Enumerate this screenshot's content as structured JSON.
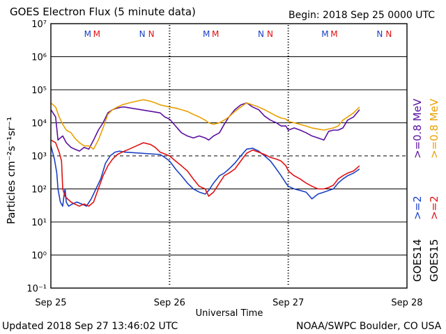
{
  "chart_data": {
    "type": "line",
    "title": "GOES Electron Flux (5 minute data)",
    "begin_label": "Begin: 2018 Sep 25 0000 UTC",
    "xlabel": "Universal Time",
    "ylabel": "Particles cm⁻²s⁻¹sr⁻¹",
    "y_scale": "log",
    "ylim": [
      0.1,
      10000000
    ],
    "y_ticks": [
      "10⁻¹",
      "10⁰",
      "10¹",
      "10²",
      "10³",
      "10⁴",
      "10⁵",
      "10⁶",
      "10⁷"
    ],
    "x_range_days": [
      0,
      3
    ],
    "x_ticks": [
      "Sep 25",
      "Sep 26",
      "Sep 27",
      "Sep 28"
    ],
    "grid": true,
    "threshold_line": 1000,
    "marker_labels": [
      "M",
      "M",
      "N",
      "N",
      "M",
      "M",
      "N",
      "N",
      "M",
      "M",
      "N",
      "N"
    ],
    "legend": {
      "goes14": "GOES14",
      "goes15": "GOES15",
      "ge2": ">=2",
      "ge08_mev": ">=0.8 MeV",
      "ge2_alt": ">=2",
      "ge08_mev_alt": ">=0.8 MeV",
      "placement": "right"
    },
    "series": [
      {
        "name": "GOES14 >=0.8 MeV",
        "color": "#5a0fa0",
        "x": [
          0,
          0.04,
          0.06,
          0.08,
          0.1,
          0.13,
          0.17,
          0.2,
          0.24,
          0.28,
          0.32,
          0.36,
          0.4,
          0.44,
          0.48,
          0.52,
          0.56,
          0.6,
          0.62,
          0.92,
          0.96,
          1.0,
          1.05,
          1.1,
          1.15,
          1.2,
          1.25,
          1.3,
          1.33,
          1.37,
          1.42,
          1.46,
          1.5,
          1.55,
          1.6,
          1.65,
          1.7,
          1.75,
          1.8,
          1.85,
          1.9,
          1.94,
          1.98,
          2.0,
          2.05,
          2.1,
          2.15,
          2.2,
          2.25,
          2.3,
          2.34,
          2.38,
          2.42,
          2.46,
          2.5,
          2.55,
          2.6
        ],
        "y": [
          25000,
          15000,
          3000,
          3500,
          4000,
          2500,
          1800,
          1600,
          1400,
          1800,
          1600,
          3000,
          6000,
          10000,
          20000,
          25000,
          28000,
          30000,
          30000,
          20000,
          15000,
          13000,
          8000,
          5000,
          4000,
          3500,
          4000,
          3500,
          3000,
          4000,
          5000,
          9000,
          15000,
          25000,
          35000,
          40000,
          30000,
          25000,
          16000,
          12000,
          10000,
          8000,
          8000,
          6000,
          7000,
          6000,
          5000,
          4000,
          3500,
          3000,
          5500,
          6000,
          6000,
          7000,
          12000,
          15000,
          25000
        ]
      },
      {
        "name": "GOES15 >=0.8 MeV",
        "color": "#e8a000",
        "x": [
          0,
          0.04,
          0.07,
          0.1,
          0.13,
          0.17,
          0.2,
          0.24,
          0.28,
          0.32,
          0.36,
          0.4,
          0.44,
          0.48,
          0.52,
          0.56,
          0.6,
          0.66,
          0.72,
          0.78,
          0.84,
          0.88,
          0.92,
          1.0,
          1.05,
          1.1,
          1.15,
          1.2,
          1.25,
          1.3,
          1.33,
          1.37,
          1.42,
          1.46,
          1.5,
          1.55,
          1.6,
          1.65,
          1.7,
          1.75,
          1.8,
          1.85,
          1.9,
          1.94,
          1.98,
          2.0,
          2.05,
          2.1,
          2.15,
          2.2,
          2.25,
          2.3,
          2.34,
          2.38,
          2.42,
          2.46,
          2.5,
          2.55,
          2.6
        ],
        "y": [
          40000,
          30000,
          15000,
          9000,
          6000,
          5000,
          3500,
          2500,
          2000,
          2000,
          1600,
          3000,
          7000,
          18000,
          25000,
          30000,
          35000,
          40000,
          45000,
          50000,
          45000,
          40000,
          35000,
          30000,
          28000,
          25000,
          22000,
          18000,
          15000,
          12000,
          10000,
          9000,
          10000,
          12000,
          15000,
          22000,
          30000,
          40000,
          35000,
          30000,
          25000,
          20000,
          16000,
          14000,
          13000,
          11000,
          10000,
          9000,
          8000,
          7000,
          6500,
          6000,
          6500,
          7000,
          8000,
          12000,
          15000,
          20000,
          30000
        ]
      },
      {
        "name": "GOES14 >=2",
        "color": "#1a3fc4",
        "x": [
          0,
          0.03,
          0.05,
          0.06,
          0.08,
          0.1,
          0.11,
          0.12,
          0.13,
          0.15,
          0.18,
          0.22,
          0.26,
          0.3,
          0.34,
          0.38,
          0.42,
          0.46,
          0.5,
          0.54,
          0.58,
          0.62,
          0.92,
          0.96,
          1.0,
          1.05,
          1.1,
          1.15,
          1.2,
          1.25,
          1.3,
          1.33,
          1.37,
          1.42,
          1.46,
          1.5,
          1.55,
          1.6,
          1.65,
          1.7,
          1.75,
          1.8,
          1.85,
          1.9,
          1.94,
          1.98,
          2.0,
          2.05,
          2.1,
          2.15,
          2.2,
          2.25,
          2.3,
          2.34,
          2.38,
          2.42,
          2.46,
          2.5,
          2.55,
          2.6
        ],
        "y": [
          2000,
          800,
          300,
          100,
          40,
          30,
          60,
          100,
          40,
          30,
          35,
          40,
          35,
          30,
          50,
          100,
          200,
          600,
          1000,
          1300,
          1400,
          1300,
          1100,
          900,
          700,
          400,
          250,
          150,
          100,
          80,
          70,
          90,
          150,
          250,
          300,
          400,
          600,
          1000,
          1600,
          1700,
          1400,
          1000,
          700,
          400,
          250,
          150,
          120,
          100,
          90,
          80,
          50,
          70,
          80,
          90,
          100,
          150,
          200,
          250,
          300,
          400
        ]
      },
      {
        "name": "GOES15 >=2",
        "color": "#e01010",
        "x": [
          0,
          0.04,
          0.07,
          0.09,
          0.1,
          0.12,
          0.14,
          0.17,
          0.2,
          0.24,
          0.28,
          0.32,
          0.36,
          0.4,
          0.44,
          0.48,
          0.52,
          0.56,
          0.6,
          0.66,
          0.72,
          0.78,
          0.84,
          0.88,
          0.92,
          1.0,
          1.05,
          1.1,
          1.15,
          1.2,
          1.25,
          1.3,
          1.33,
          1.37,
          1.42,
          1.46,
          1.5,
          1.55,
          1.6,
          1.65,
          1.7,
          1.75,
          1.8,
          1.85,
          1.9,
          1.94,
          1.98,
          2.0,
          2.05,
          2.1,
          2.15,
          2.2,
          2.25,
          2.3,
          2.34,
          2.38,
          2.42,
          2.46,
          2.5,
          2.55,
          2.6
        ],
        "y": [
          3000,
          2500,
          1300,
          700,
          100,
          60,
          50,
          40,
          35,
          30,
          35,
          30,
          40,
          100,
          250,
          500,
          800,
          1100,
          1300,
          1600,
          2000,
          2500,
          2200,
          1800,
          1300,
          1000,
          700,
          500,
          350,
          200,
          120,
          100,
          60,
          80,
          150,
          250,
          300,
          400,
          700,
          1200,
          1500,
          1300,
          1100,
          900,
          800,
          700,
          500,
          350,
          250,
          200,
          150,
          120,
          100,
          100,
          110,
          130,
          200,
          250,
          300,
          350,
          500
        ]
      }
    ],
    "updated_label": "Updated 2018 Sep 27 13:46:02 UTC",
    "credit_label": "NOAA/SWPC Boulder, CO USA"
  }
}
